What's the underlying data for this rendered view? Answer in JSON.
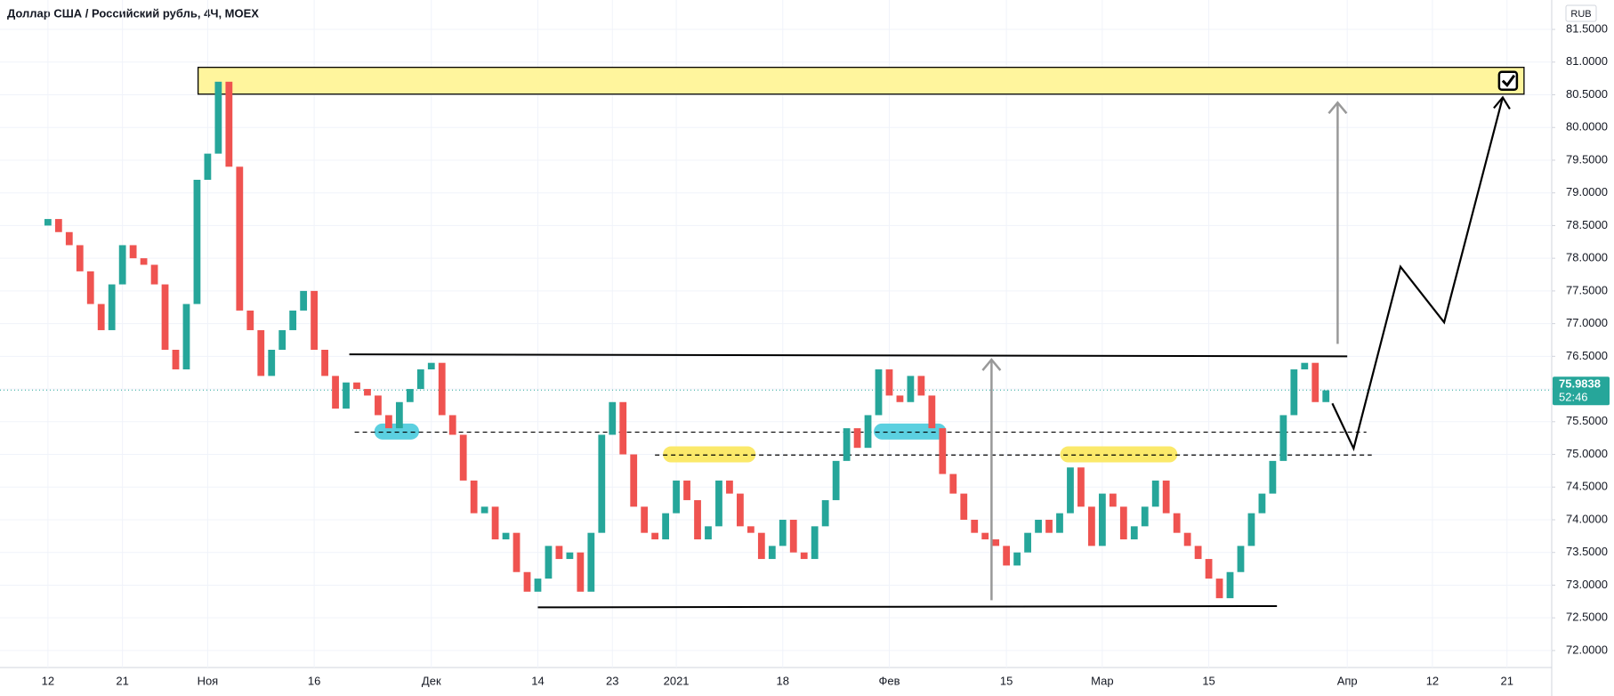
{
  "chart_data": {
    "type": "candlestick",
    "title": "Доллар США / Российский рубль, 4Ч, MOEX",
    "currency": "RUB",
    "last_price": 75.9838,
    "countdown": "52:46",
    "up_color": "#26a69a",
    "down_color": "#ef5350",
    "open": [
      78.5,
      78.6,
      78.4,
      78.2,
      77.8,
      77.3,
      76.9,
      77.6,
      78.2,
      78.0,
      77.9,
      77.6,
      76.6,
      76.3,
      77.3,
      79.2,
      79.6,
      80.7,
      79.4,
      77.2,
      76.9,
      76.2,
      76.6,
      76.9,
      77.2,
      77.5,
      76.6,
      76.2,
      75.7,
      76.1,
      76.0,
      75.9,
      75.6,
      75.4,
      75.8,
      76.0,
      76.3,
      76.4,
      75.6,
      75.3,
      74.6,
      74.1,
      74.2,
      73.7,
      73.8,
      73.2,
      72.9,
      73.1,
      73.6,
      73.4,
      73.5,
      72.9,
      73.8,
      75.3,
      75.8,
      75.0,
      74.2,
      73.8,
      73.7,
      74.1,
      74.6,
      74.3,
      73.7,
      73.9,
      74.6,
      74.4,
      73.9,
      73.8,
      73.4,
      73.6,
      74.0,
      73.5,
      73.4,
      73.9,
      74.3,
      74.9,
      75.4,
      75.1,
      75.6,
      76.3,
      75.9,
      75.8,
      76.2,
      75.9,
      75.4,
      74.7,
      74.4,
      74.0,
      73.8,
      73.7,
      73.6,
      73.3,
      73.5,
      73.8,
      74.0,
      73.8,
      74.1,
      74.8,
      74.2,
      73.6,
      74.4,
      74.2,
      73.7,
      73.9,
      74.2,
      74.6,
      74.1,
      73.8,
      73.6,
      73.4,
      73.1,
      72.8,
      73.2,
      73.6,
      74.1,
      74.4,
      74.9,
      75.6,
      76.3,
      76.4,
      75.8
    ],
    "close": [
      78.6,
      78.4,
      78.2,
      77.8,
      77.3,
      76.9,
      77.6,
      78.2,
      78.0,
      77.9,
      77.6,
      76.6,
      76.3,
      77.3,
      79.2,
      79.6,
      80.7,
      79.4,
      77.2,
      76.9,
      76.2,
      76.6,
      76.9,
      77.2,
      77.5,
      76.6,
      76.2,
      75.7,
      76.1,
      76.0,
      75.9,
      75.6,
      75.4,
      75.8,
      76.0,
      76.3,
      76.4,
      75.6,
      75.3,
      74.6,
      74.1,
      74.2,
      73.7,
      73.8,
      73.2,
      72.9,
      73.1,
      73.6,
      73.4,
      73.5,
      72.9,
      73.8,
      75.3,
      75.8,
      75.0,
      74.2,
      73.8,
      73.7,
      74.1,
      74.6,
      74.3,
      73.7,
      73.9,
      74.6,
      74.4,
      73.9,
      73.8,
      73.4,
      73.6,
      74.0,
      73.5,
      73.4,
      73.9,
      74.3,
      74.9,
      75.4,
      75.1,
      75.6,
      76.3,
      75.9,
      75.8,
      76.2,
      75.9,
      75.4,
      74.7,
      74.4,
      74.0,
      73.8,
      73.7,
      73.6,
      73.3,
      73.5,
      73.8,
      74.0,
      73.8,
      74.1,
      74.8,
      74.2,
      73.6,
      74.4,
      74.2,
      73.7,
      73.9,
      74.2,
      74.6,
      74.1,
      73.8,
      73.6,
      73.4,
      73.1,
      72.8,
      73.2,
      73.6,
      74.1,
      74.4,
      74.9,
      75.6,
      76.3,
      76.4,
      75.8,
      75.98
    ],
    "xlim": [
      -4.5,
      141.2
    ],
    "xticks": [
      {
        "value": 0,
        "label": "12"
      },
      {
        "value": 7,
        "label": "21"
      },
      {
        "value": 15,
        "label": "Ноя"
      },
      {
        "value": 25,
        "label": "16"
      },
      {
        "value": 36,
        "label": "Дек"
      },
      {
        "value": 46,
        "label": "14"
      },
      {
        "value": 53,
        "label": "23"
      },
      {
        "value": 59,
        "label": "2021"
      },
      {
        "value": 69,
        "label": "18"
      },
      {
        "value": 79,
        "label": "Фев"
      },
      {
        "value": 90,
        "label": "15"
      },
      {
        "value": 99,
        "label": "Мар"
      },
      {
        "value": 109,
        "label": "15"
      },
      {
        "value": 122,
        "label": "Апр"
      },
      {
        "value": 130,
        "label": "12"
      },
      {
        "value": 137,
        "label": "21"
      }
    ],
    "ylim": [
      71.74,
      81.95
    ],
    "yticks": [
      {
        "value": 72,
        "label": "72.0000"
      },
      {
        "value": 72.5,
        "label": "72.5000"
      },
      {
        "value": 73,
        "label": "73.0000"
      },
      {
        "value": 73.5,
        "label": "73.5000"
      },
      {
        "value": 74,
        "label": "74.0000"
      },
      {
        "value": 74.5,
        "label": "74.5000"
      },
      {
        "value": 75,
        "label": "75.0000"
      },
      {
        "value": 75.5,
        "label": "75.5000"
      },
      {
        "value": 76,
        "label": "76.0000"
      },
      {
        "value": 76.5,
        "label": "76.5000"
      },
      {
        "value": 77,
        "label": "77.0000"
      },
      {
        "value": 77.5,
        "label": "77.5000"
      },
      {
        "value": 78,
        "label": "78.0000"
      },
      {
        "value": 78.5,
        "label": "78.5000"
      },
      {
        "value": 79,
        "label": "79.0000"
      },
      {
        "value": 79.5,
        "label": "79.5000"
      },
      {
        "value": 80,
        "label": "80.0000"
      },
      {
        "value": 80.5,
        "label": "80.5000"
      },
      {
        "value": 81,
        "label": "81.0000"
      },
      {
        "value": 81.5,
        "label": "81.5000"
      }
    ],
    "grid": true,
    "drawings": {
      "zone": {
        "x": [
          14.1,
          138.6
        ],
        "y": [
          80.51,
          80.92
        ],
        "color": "#fff59d"
      },
      "lines": [
        {
          "x": [
            28.3,
            122
          ],
          "y": [
            76.53,
            76.5
          ],
          "color": "#000000",
          "dashed": false
        },
        {
          "x": [
            46,
            115.4
          ],
          "y": [
            72.66,
            72.68
          ],
          "color": "#000000",
          "dashed": false
        },
        {
          "x": [
            28.8,
            123.8
          ],
          "y": [
            75.34,
            75.34
          ],
          "color": "#000000",
          "dashed": true
        },
        {
          "x": [
            57,
            124.3
          ],
          "y": [
            74.99,
            74.99
          ],
          "color": "#000000",
          "dashed": true
        }
      ],
      "arrows": [
        {
          "x": [
            88.6,
            88.6
          ],
          "y": [
            72.77,
            76.45
          ],
          "color": "#999999"
        },
        {
          "x": [
            121.1,
            121.1
          ],
          "y": [
            76.69,
            80.38
          ],
          "color": "#999999"
        }
      ],
      "path": {
        "x": [
          120.6,
          122.6,
          127,
          131.1,
          136.6
        ],
        "y": [
          75.78,
          75.09,
          77.87,
          77.02,
          80.46
        ],
        "color": "#000000"
      },
      "highlights": [
        {
          "x": [
            31.4,
            34.1
          ],
          "y": 75.35,
          "color": "#5bd0e0"
        },
        {
          "x": [
            78.3,
            83.6
          ],
          "y": 75.35,
          "color": "#5bd0e0"
        },
        {
          "x": [
            58.5,
            65.7
          ],
          "y": 75.0,
          "color": "#fbe96a"
        },
        {
          "x": [
            95.8,
            105.3
          ],
          "y": 75.0,
          "color": "#fbe96a"
        }
      ]
    }
  }
}
